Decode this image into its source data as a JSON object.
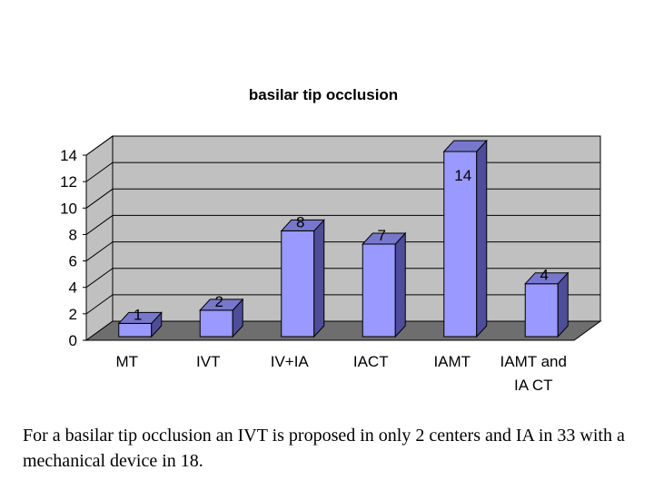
{
  "chart_data": {
    "type": "bar",
    "title": "basilar tip occlusion",
    "categories": [
      [
        "MT"
      ],
      [
        "IVT"
      ],
      [
        "IV+IA"
      ],
      [
        "IACT"
      ],
      [
        "IAMT"
      ],
      [
        "IAMT and",
        "IA CT"
      ]
    ],
    "values": [
      1,
      2,
      8,
      7,
      14,
      4
    ],
    "data_labels": [
      "1",
      "2",
      "8",
      "7",
      "14",
      "4"
    ],
    "ylim": [
      0,
      14
    ],
    "yticks": [
      0,
      2,
      4,
      6,
      8,
      10,
      12,
      14
    ],
    "grid": true,
    "legend": "none",
    "colors": {
      "bar_front": "#9999ff",
      "bar_side": "#4d4d99",
      "bar_top": "#7777cc",
      "back_wall": "#c0c0c0",
      "floor": "#6e6e6e",
      "gridline": "#000000"
    }
  },
  "caption": "For a basilar tip occlusion an IVT is proposed in only 2 centers and IA in 33 with a mechanical device in 18."
}
